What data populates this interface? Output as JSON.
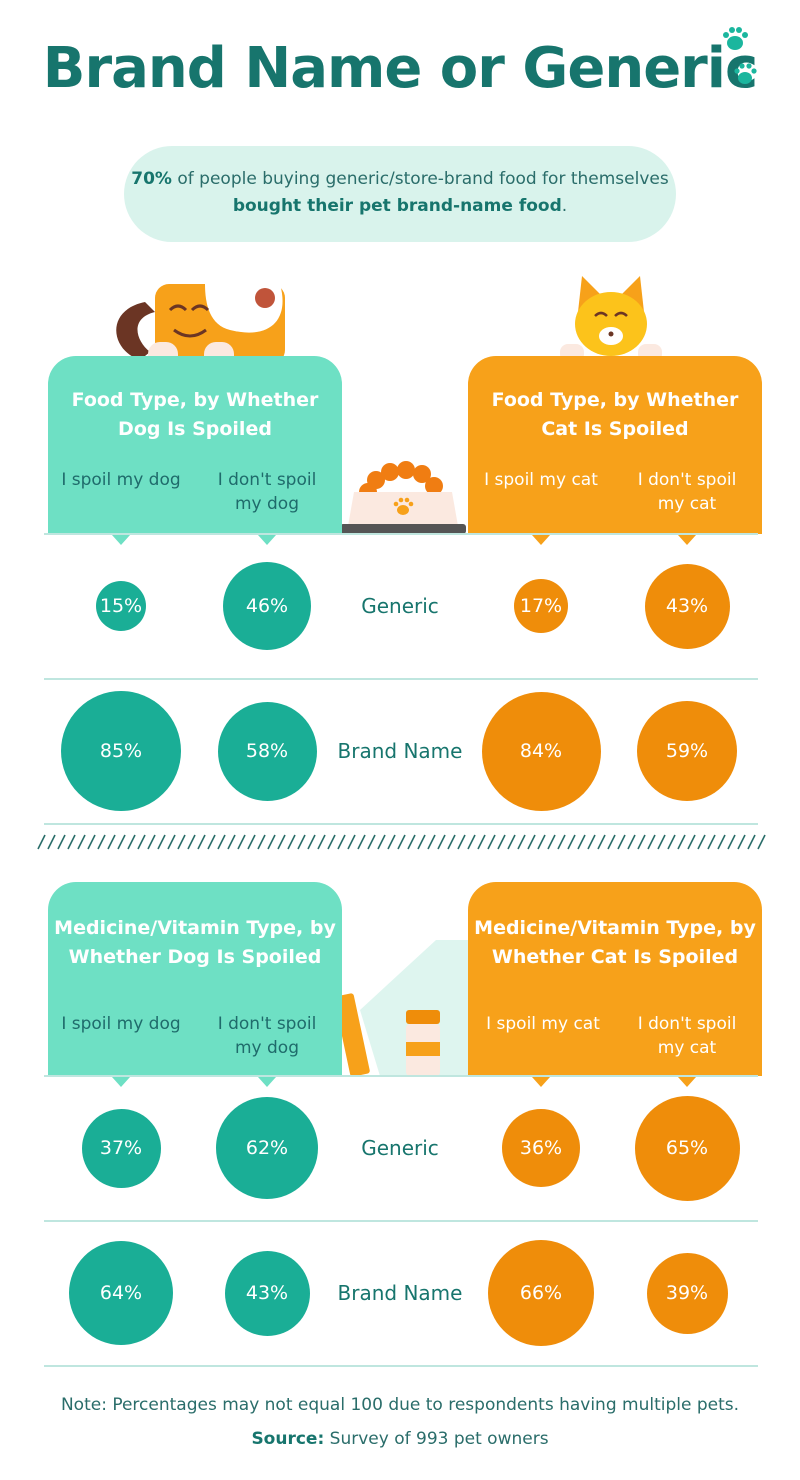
{
  "title": "Brand Name or Generic",
  "callout": {
    "pct": "70%",
    "part1": " of people buying generic/store-brand food for themselves ",
    "bold": "bought their pet brand-name food",
    "end": "."
  },
  "colors": {
    "dog": "#1aae96",
    "cat": "#ef8d0a",
    "dog_panel": "#6ee0c4",
    "cat_panel": "#f7a11a"
  },
  "chart_data": [
    {
      "type": "bubble",
      "title_dog": "Food Type, by Whether Dog Is Spoiled",
      "title_cat": "Food Type, by Whether Cat Is Spoiled",
      "columns": [
        "I spoil my dog",
        "I don't spoil my dog",
        "I spoil my cat",
        "I don't spoil my cat"
      ],
      "rows": [
        "Generic",
        "Brand Name"
      ],
      "values": [
        [
          15,
          46,
          17,
          43
        ],
        [
          85,
          58,
          84,
          59
        ]
      ]
    },
    {
      "type": "bubble",
      "title_dog": "Medicine/Vitamin Type, by Whether Dog Is Spoiled",
      "title_cat": "Medicine/Vitamin Type, by Whether Cat Is Spoiled",
      "columns": [
        "I spoil my dog",
        "I don't spoil my dog",
        "I spoil my cat",
        "I don't spoil my cat"
      ],
      "rows": [
        "Generic",
        "Brand Name"
      ],
      "values": [
        [
          37,
          62,
          36,
          65
        ],
        [
          64,
          43,
          66,
          39
        ]
      ]
    }
  ],
  "note": "Note: Percentages may not equal 100 due to respondents having multiple pets.",
  "source_label": "Source:",
  "source_text": " Survey of 993 pet owners"
}
